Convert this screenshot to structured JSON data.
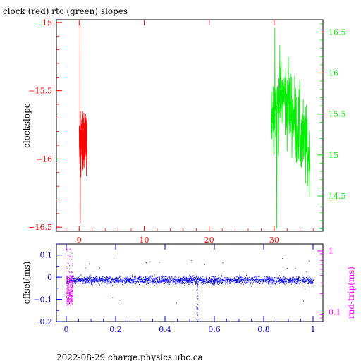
{
  "title": "clock (red) rtc (green) slopes",
  "footer": "2022-08-29 charge.physics.ubc.ca",
  "colors": {
    "red": "#ff0000",
    "green": "#00ee00",
    "blue": "#0000ff",
    "magenta": "#ff00ff",
    "axis": "#000000",
    "tick_text_blue": "#0000cc"
  },
  "chart_data": [
    {
      "type": "line",
      "title": "clock (red) rtc (green) slopes",
      "ylabel": "clockslope",
      "y2label": "",
      "xlim": [
        -3.5,
        37.5
      ],
      "ylim": [
        -16.53,
        -14.98
      ],
      "y2lim": [
        14.07,
        16.65
      ],
      "xticks": [
        0,
        10,
        20,
        30
      ],
      "yticks": [
        -15,
        -15.5,
        -16,
        -16.5
      ],
      "y2ticks": [
        14.5,
        15,
        15.5,
        16,
        16.5
      ],
      "grid": false,
      "series": [
        {
          "color": "red",
          "axis": "left",
          "x_range": [
            0.0,
            1.2
          ],
          "y_band": [
            -16.2,
            -15.55
          ],
          "y_extremes": [
            -16.47,
            -15.02
          ],
          "points": 180
        },
        {
          "color": "green",
          "axis": "right",
          "x_range": [
            29.5,
            35.5
          ],
          "y_band": [
            14.4,
            16.3
          ],
          "y_extremes": [
            14.1,
            16.55
          ],
          "points": 200
        }
      ]
    },
    {
      "type": "scatter",
      "xlabel": "",
      "ylabel": "offset(ms)",
      "y2label": "rnd-trip(ms)",
      "xlim": [
        -0.04,
        1.04
      ],
      "ylim": [
        -0.2,
        0.15
      ],
      "y2lim_log": [
        0.07,
        1.3
      ],
      "xticks": [
        0,
        0.2,
        0.4,
        0.6,
        0.8,
        1
      ],
      "yticks": [
        0.1,
        0,
        -0.1,
        -0.2
      ],
      "y2ticks": [
        1,
        0.1
      ],
      "grid": false,
      "series": [
        {
          "color": "blue",
          "axis": "left",
          "x_range": [
            0.0,
            1.0
          ],
          "y_band": [
            -0.04,
            0.02
          ],
          "points": 4500
        },
        {
          "color": "magenta",
          "axis": "right",
          "x_range": [
            0.0,
            0.025
          ],
          "y_band": [
            0.13,
            0.4
          ],
          "y_extremes": [
            0.11,
            1.1
          ],
          "points": 300
        }
      ]
    }
  ]
}
